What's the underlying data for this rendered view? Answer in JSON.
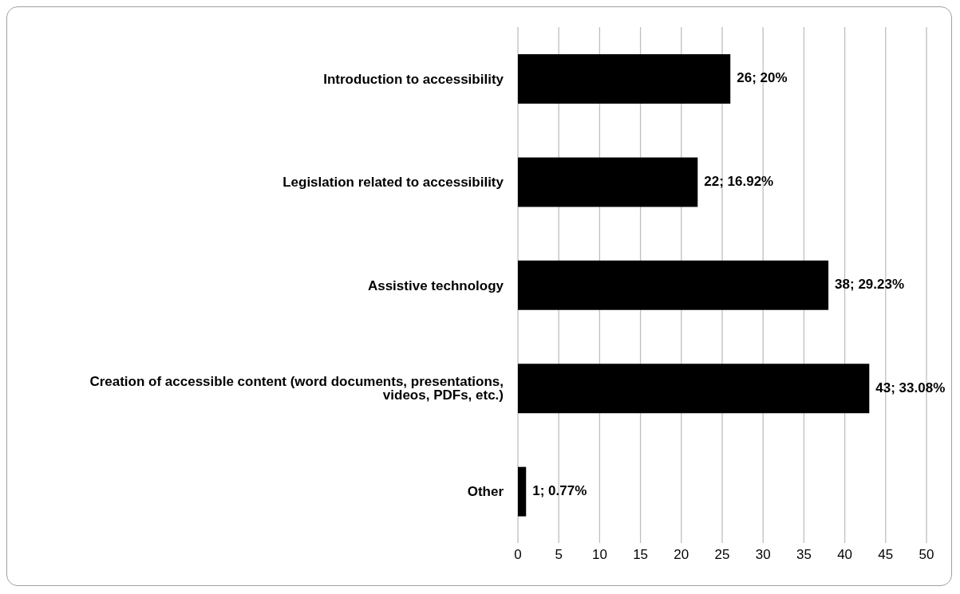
{
  "chart_data": {
    "type": "bar",
    "orientation": "horizontal",
    "categories": [
      "Introduction to accessibility",
      "Legislation related to accessibility",
      "Assistive technology",
      "Creation of accessible content (word documents, presentations, videos, PDFs, etc.)",
      "Other"
    ],
    "values": [
      26,
      22,
      38,
      43,
      1
    ],
    "value_labels": [
      "26; 20%",
      "22; 16.92%",
      "38; 29.23%",
      "43; 33.08%",
      "1; 0.77%"
    ],
    "color": "#000000",
    "xlim": [
      0,
      50
    ],
    "xticks": [
      0,
      5,
      10,
      15,
      20,
      25,
      30,
      35,
      40,
      45,
      50
    ],
    "grid": "x",
    "legend": false
  }
}
